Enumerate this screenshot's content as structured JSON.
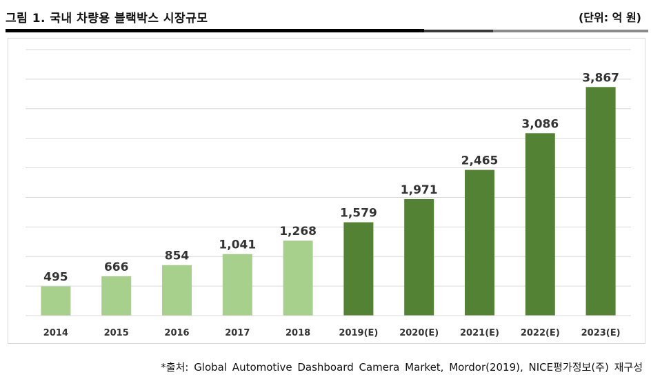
{
  "header": {
    "title": "그림 1. 국내 차량용 블랙박스 시장규모",
    "unit": "(단위: 억 원)"
  },
  "footer": {
    "source": "*출처: Global Automotive Dashboard Camera Market, Mordor(2019), NICE평가정보(주) 재구성"
  },
  "colors": {
    "actual": "#a8d08d",
    "forecast": "#548235",
    "gridline": "#d9d9d9",
    "label": "#333333"
  },
  "chart_data": {
    "type": "bar",
    "title": "국내 차량용 블랙박스 시장규모",
    "xlabel": "",
    "ylabel": "",
    "unit": "억 원",
    "categories": [
      "2014",
      "2015",
      "2016",
      "2017",
      "2018",
      "2019(E)",
      "2020(E)",
      "2021(E)",
      "2022(E)",
      "2023(E)"
    ],
    "values": [
      495,
      666,
      854,
      1041,
      1268,
      1579,
      1971,
      2465,
      3086,
      3867
    ],
    "value_labels": [
      "495",
      "666",
      "854",
      "1,041",
      "1,268",
      "1,579",
      "1,971",
      "2,465",
      "3,086",
      "3,867"
    ],
    "forecast": [
      false,
      false,
      false,
      false,
      false,
      true,
      true,
      true,
      true,
      true
    ],
    "ylim": [
      0,
      4500
    ],
    "ytick_step": 500,
    "grid": true,
    "yaxis_visible": false,
    "legend": "none"
  }
}
